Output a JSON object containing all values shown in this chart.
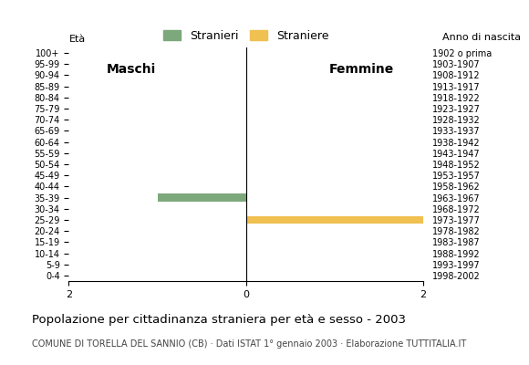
{
  "age_groups": [
    "100+",
    "95-99",
    "90-94",
    "85-89",
    "80-84",
    "75-79",
    "70-74",
    "65-69",
    "60-64",
    "55-59",
    "50-54",
    "45-49",
    "40-44",
    "35-39",
    "30-34",
    "25-29",
    "20-24",
    "15-19",
    "10-14",
    "5-9",
    "0-4"
  ],
  "birth_years": [
    "1902 o prima",
    "1903-1907",
    "1908-1912",
    "1913-1917",
    "1918-1922",
    "1923-1927",
    "1928-1932",
    "1933-1937",
    "1938-1942",
    "1943-1947",
    "1948-1952",
    "1953-1957",
    "1958-1962",
    "1963-1967",
    "1968-1972",
    "1973-1977",
    "1978-1982",
    "1983-1987",
    "1988-1992",
    "1993-1997",
    "1998-2002"
  ],
  "males": [
    0,
    0,
    0,
    0,
    0,
    0,
    0,
    0,
    0,
    0,
    0,
    0,
    0,
    1,
    0,
    0,
    0,
    0,
    0,
    0,
    0
  ],
  "females": [
    0,
    0,
    0,
    0,
    0,
    0,
    0,
    0,
    0,
    0,
    0,
    0,
    0,
    0,
    0,
    2,
    0,
    0,
    0,
    0,
    0
  ],
  "male_color": "#7da87b",
  "female_color": "#f0c050",
  "xlim": 2,
  "title": "Popolazione per cittadinanza straniera per età e sesso - 2003",
  "subtitle": "COMUNE DI TORELLA DEL SANNIO (CB) · Dati ISTAT 1° gennaio 2003 · Elaborazione TUTTITALIA.IT",
  "legend_male": "Stranieri",
  "legend_female": "Straniere",
  "label_eta": "Età",
  "label_anno": "Anno di nascita",
  "label_maschi": "Maschi",
  "label_femmine": "Femmine"
}
